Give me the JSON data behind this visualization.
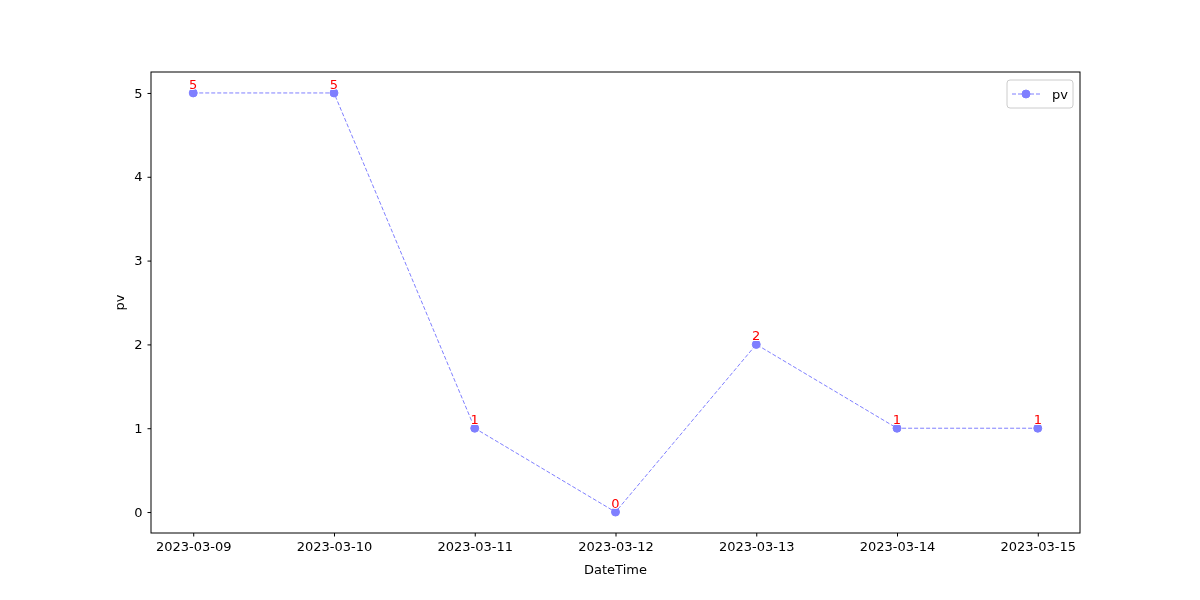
{
  "chart_data": {
    "type": "line",
    "xlabel": "DateTime",
    "ylabel": "pv",
    "categories": [
      "2023-03-09",
      "2023-03-10",
      "2023-03-11",
      "2023-03-12",
      "2023-03-13",
      "2023-03-14",
      "2023-03-15"
    ],
    "series": [
      {
        "name": "pv",
        "color": "#7f7fff",
        "values": [
          5,
          5,
          1,
          0,
          2,
          1,
          1
        ]
      }
    ],
    "ylim": [
      -0.25,
      5.25
    ],
    "yticks": [
      0,
      1,
      2,
      3,
      4,
      5
    ],
    "grid": false,
    "legend": "top right",
    "marker": "circle",
    "line_style": "dashed",
    "data_labels": true
  }
}
